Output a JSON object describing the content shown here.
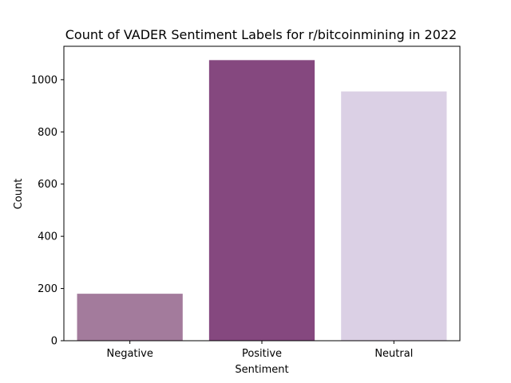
{
  "chart_data": {
    "type": "bar",
    "title": "Count of VADER Sentiment Labels for r/bitcoinmining in 2022",
    "xlabel": "Sentiment",
    "ylabel": "Count",
    "categories": [
      "Negative",
      "Positive",
      "Neutral"
    ],
    "values": [
      180,
      1075,
      955
    ],
    "colors": [
      "#a37b9c",
      "#85487f",
      "#dbd0e5"
    ],
    "ylim": [
      0,
      1128
    ],
    "yticks": [
      0,
      200,
      400,
      600,
      800,
      1000
    ],
    "grid": false,
    "legend": "none"
  }
}
